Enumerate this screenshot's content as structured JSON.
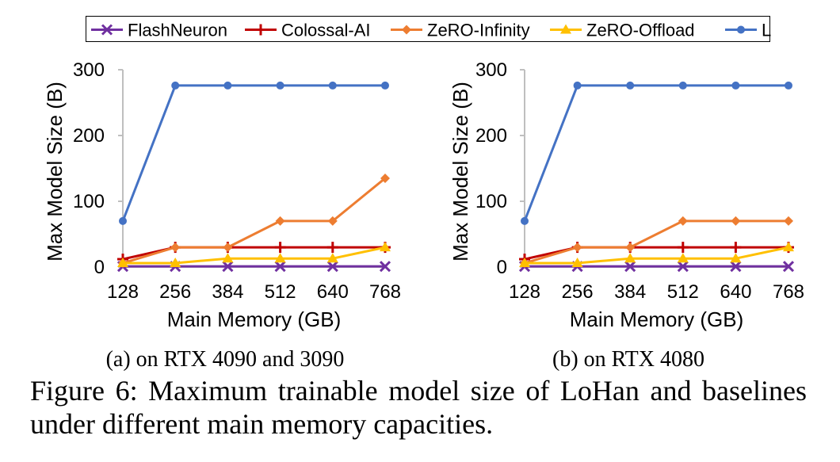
{
  "legend": [
    {
      "name": "FlashNeuron",
      "color": "#7030A0",
      "marker": "x"
    },
    {
      "name": "Colossal-AI",
      "color": "#C00000",
      "marker": "plus"
    },
    {
      "name": "ZeRO-Infinity",
      "color": "#ED7D31",
      "marker": "diamond"
    },
    {
      "name": "ZeRO-Offload",
      "color": "#FFC000",
      "marker": "triangle"
    },
    {
      "name": "LoHan",
      "color": "#4472C4",
      "marker": "circle"
    }
  ],
  "chart_data": [
    {
      "type": "line",
      "subtitle": "(a) on RTX 4090 and 3090",
      "xlabel": "Main Memory (GB)",
      "ylabel": "Max Model Size (B)",
      "categories": [
        "128",
        "256",
        "384",
        "512",
        "640",
        "768"
      ],
      "yticks": [
        0,
        100,
        200,
        300
      ],
      "ylim": [
        0,
        300
      ],
      "grid": false,
      "series": [
        {
          "name": "FlashNeuron",
          "values": [
            1,
            1,
            1,
            1,
            1,
            1
          ]
        },
        {
          "name": "Colossal-AI",
          "values": [
            12,
            30,
            30,
            30,
            30,
            30
          ]
        },
        {
          "name": "ZeRO-Infinity",
          "values": [
            6,
            30,
            30,
            70,
            70,
            135
          ]
        },
        {
          "name": "ZeRO-Offload",
          "values": [
            6,
            6,
            13,
            13,
            13,
            30
          ]
        },
        {
          "name": "LoHan",
          "values": [
            70,
            276,
            276,
            276,
            276,
            276
          ]
        }
      ]
    },
    {
      "type": "line",
      "subtitle": "(b) on RTX 4080",
      "xlabel": "Main Memory (GB)",
      "ylabel": "Max Model Size (B)",
      "categories": [
        "128",
        "256",
        "384",
        "512",
        "640",
        "768"
      ],
      "yticks": [
        0,
        100,
        200,
        300
      ],
      "ylim": [
        0,
        300
      ],
      "grid": false,
      "series": [
        {
          "name": "FlashNeuron",
          "values": [
            1,
            1,
            1,
            1,
            1,
            1
          ]
        },
        {
          "name": "Colossal-AI",
          "values": [
            12,
            30,
            30,
            30,
            30,
            30
          ]
        },
        {
          "name": "ZeRO-Infinity",
          "values": [
            6,
            30,
            30,
            70,
            70,
            70
          ]
        },
        {
          "name": "ZeRO-Offload",
          "values": [
            6,
            6,
            13,
            13,
            13,
            30
          ]
        },
        {
          "name": "LoHan",
          "values": [
            70,
            276,
            276,
            276,
            276,
            276
          ]
        }
      ]
    }
  ],
  "caption": "Figure 6: Maximum trainable model size of LoHan and baselines under different main memory capacities."
}
